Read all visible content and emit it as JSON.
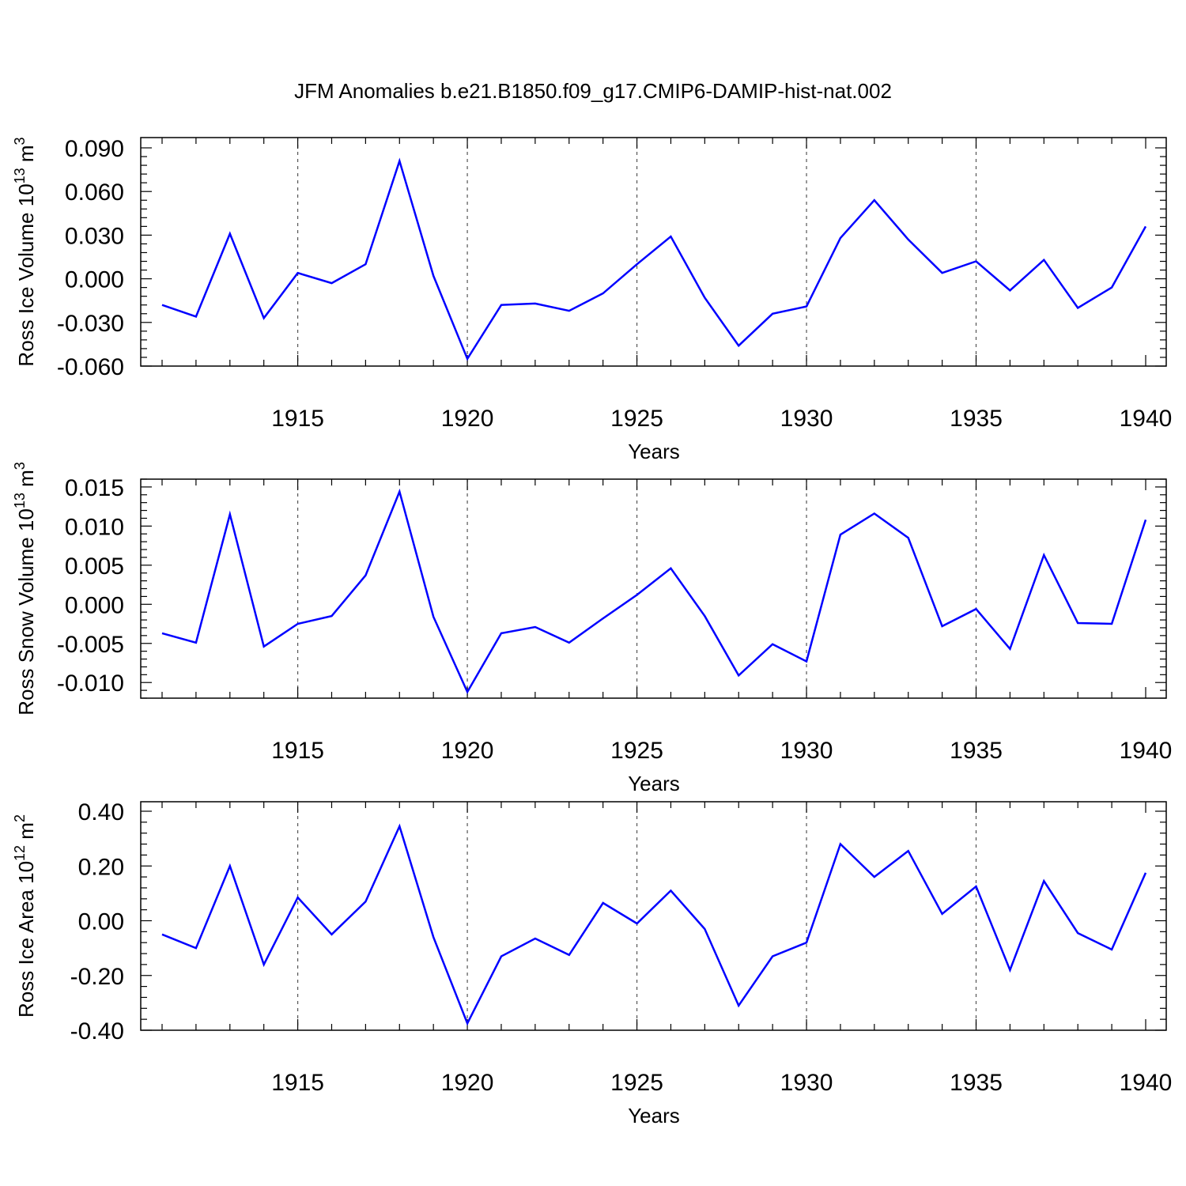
{
  "title": "JFM Anomalies b.e21.B1850.f09_g17.CMIP6-DAMIP-hist-nat.002",
  "chart_data": [
    {
      "type": "line",
      "ylabel": {
        "text": "Ross Ice Volume 10",
        "sup": "13",
        "unit": " m",
        "unit_sup": "3"
      },
      "xlabel": "Years",
      "x": [
        1911,
        1912,
        1913,
        1914,
        1915,
        1916,
        1917,
        1918,
        1919,
        1920,
        1921,
        1922,
        1923,
        1924,
        1925,
        1926,
        1927,
        1928,
        1929,
        1930,
        1931,
        1932,
        1933,
        1934,
        1935,
        1936,
        1937,
        1938,
        1939,
        1940
      ],
      "values": [
        -0.018,
        -0.026,
        0.031,
        -0.027,
        0.004,
        -0.003,
        0.01,
        0.081,
        0.002,
        -0.055,
        -0.018,
        -0.017,
        -0.022,
        -0.01,
        0.01,
        0.029,
        -0.013,
        -0.046,
        -0.024,
        -0.019,
        0.028,
        0.054,
        0.027,
        0.004,
        0.012,
        -0.008,
        0.013,
        -0.02,
        -0.006,
        0.036
      ],
      "xlim": [
        1911,
        1940
      ],
      "ylim": [
        -0.06,
        0.09
      ],
      "yticks": [
        -0.06,
        -0.03,
        0.0,
        0.03,
        0.06,
        0.09
      ],
      "ytick_labels": [
        "-0.060",
        "-0.030",
        "0.000",
        "0.030",
        "0.060",
        "0.090"
      ],
      "xticks": [
        1915,
        1920,
        1925,
        1930,
        1935,
        1940
      ],
      "xtick_labels": [
        "1915",
        "1920",
        "1925",
        "1930",
        "1935",
        "1940"
      ],
      "grid": "vertical dashed",
      "line_color": "#0000ff"
    },
    {
      "type": "line",
      "ylabel": {
        "text": "Ross Snow Volume 10",
        "sup": "13",
        "unit": " m",
        "unit_sup": "3"
      },
      "xlabel": "Years",
      "x": [
        1911,
        1912,
        1913,
        1914,
        1915,
        1916,
        1917,
        1918,
        1919,
        1920,
        1921,
        1922,
        1923,
        1924,
        1925,
        1926,
        1927,
        1928,
        1929,
        1930,
        1931,
        1932,
        1933,
        1934,
        1935,
        1936,
        1937,
        1938,
        1939,
        1940
      ],
      "values": [
        -0.0037,
        -0.0049,
        0.0115,
        -0.0054,
        -0.0025,
        -0.0015,
        0.0037,
        0.0144,
        -0.0016,
        -0.0112,
        -0.0037,
        -0.0029,
        -0.0049,
        -0.0018,
        0.0012,
        0.0046,
        -0.0015,
        -0.0091,
        -0.0051,
        -0.0073,
        0.0089,
        0.0116,
        0.0085,
        -0.0028,
        -0.0006,
        -0.0057,
        0.0063,
        -0.0024,
        -0.0025,
        0.0108
      ],
      "xlim": [
        1911,
        1940
      ],
      "ylim": [
        -0.012,
        0.016
      ],
      "yticks": [
        -0.01,
        -0.005,
        0.0,
        0.005,
        0.01,
        0.015
      ],
      "ytick_labels": [
        "-0.010",
        "-0.005",
        "0.000",
        "0.005",
        "0.010",
        "0.015"
      ],
      "xticks": [
        1915,
        1920,
        1925,
        1930,
        1935,
        1940
      ],
      "xtick_labels": [
        "1915",
        "1920",
        "1925",
        "1930",
        "1935",
        "1940"
      ],
      "grid": "vertical dashed",
      "line_color": "#0000ff"
    },
    {
      "type": "line",
      "ylabel": {
        "text": "Ross Ice Area 10",
        "sup": "12",
        "unit": " m",
        "unit_sup": "2"
      },
      "xlabel": "Years",
      "x": [
        1911,
        1912,
        1913,
        1914,
        1915,
        1916,
        1917,
        1918,
        1919,
        1920,
        1921,
        1922,
        1923,
        1924,
        1925,
        1926,
        1927,
        1928,
        1929,
        1930,
        1931,
        1932,
        1933,
        1934,
        1935,
        1936,
        1937,
        1938,
        1939,
        1940
      ],
      "values": [
        -0.05,
        -0.1,
        0.2,
        -0.16,
        0.085,
        -0.05,
        0.07,
        0.345,
        -0.06,
        -0.375,
        -0.13,
        -0.065,
        -0.125,
        0.065,
        -0.01,
        0.11,
        -0.03,
        -0.31,
        -0.13,
        -0.08,
        0.28,
        0.16,
        0.255,
        0.025,
        0.125,
        -0.18,
        0.145,
        -0.045,
        -0.105,
        0.175
      ],
      "xlim": [
        1911,
        1940
      ],
      "ylim": [
        -0.4,
        0.4
      ],
      "yticks": [
        -0.4,
        -0.2,
        0.0,
        0.2,
        0.4
      ],
      "ytick_labels": [
        "-0.40",
        "-0.20",
        "0.00",
        "0.20",
        "0.40"
      ],
      "xticks": [
        1915,
        1920,
        1925,
        1930,
        1935,
        1940
      ],
      "xtick_labels": [
        "1915",
        "1920",
        "1925",
        "1930",
        "1935",
        "1940"
      ],
      "grid": "vertical dashed",
      "line_color": "#0000ff"
    }
  ]
}
